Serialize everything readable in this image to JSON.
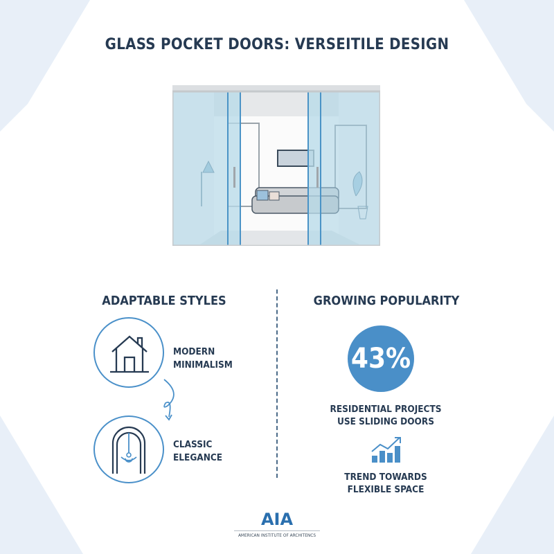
{
  "title": "GLASS POCKET DOORS: VERSEITILE DESIGN",
  "left": {
    "heading": "ADAPTABLE STYLES",
    "items": [
      {
        "icon": "house-icon",
        "line1": "MODERN",
        "line2": "MINIMALISM"
      },
      {
        "icon": "arch-chandelier-icon",
        "line1": "CLASSIC",
        "line2": "ELEGANCE"
      }
    ]
  },
  "right": {
    "heading": "GROWING POPULARITY",
    "stat": "43%",
    "stat_line1": "RESIDENTIAL PROJECTS",
    "stat_line2": "USE SLIDING DOORS",
    "trend_icon": "bar-chart-trend-icon",
    "trend_line1": "TREND TOWARDS",
    "trend_line2": "FLEXIBLE SPACE"
  },
  "logo": {
    "mark": "AIA",
    "caption": "AMERICAN INSTITUTE OF ARCHITENCS"
  },
  "colors": {
    "accent": "#4a8fc8",
    "text": "#263a52",
    "corner": "#e6eef8"
  }
}
